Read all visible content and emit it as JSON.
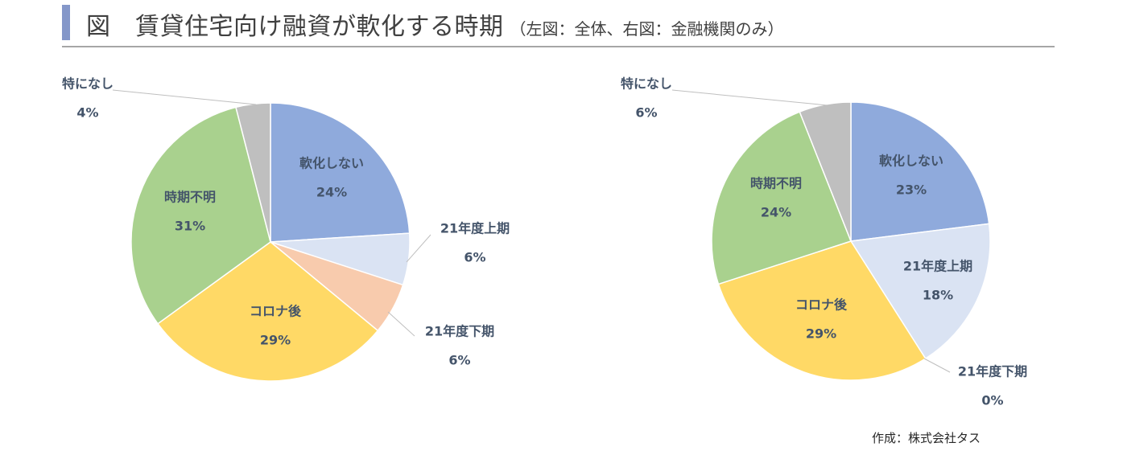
{
  "header": {
    "title": "図　賃貸住宅向け融資が軟化する時期",
    "subtitle": "（左図：全体、右図：金融機関のみ）"
  },
  "footer": {
    "credit": "作成：株式会社タス"
  },
  "colors": {
    "soften_none": "#8faadc",
    "h1_21": "#dae3f3",
    "h2_21": "#f8cbad",
    "after_corona": "#ffd966",
    "unknown": "#a9d18e",
    "none": "#bfbfbf",
    "label": "#44546a",
    "accent_bar": "#8497c9"
  },
  "chart_data": [
    {
      "type": "pie",
      "title": "",
      "categories": [
        "軟化しない",
        "21年度上期",
        "21年度下期",
        "コロナ後",
        "時期不明",
        "特になし"
      ],
      "values": [
        24,
        6,
        6,
        29,
        31,
        4
      ],
      "value_labels": [
        "24%",
        "6%",
        "6%",
        "29%",
        "31%",
        "4%"
      ],
      "color_keys": [
        "soften_none",
        "h1_21",
        "h2_21",
        "after_corona",
        "unknown",
        "none"
      ]
    },
    {
      "type": "pie",
      "title": "",
      "categories": [
        "軟化しない",
        "21年度上期",
        "21年度下期",
        "コロナ後",
        "時期不明",
        "特になし"
      ],
      "values": [
        23,
        18,
        0,
        29,
        24,
        6
      ],
      "value_labels": [
        "23%",
        "18%",
        "0%",
        "29%",
        "24%",
        "6%"
      ],
      "color_keys": [
        "soften_none",
        "h1_21",
        "h2_21",
        "after_corona",
        "unknown",
        "none"
      ]
    }
  ]
}
